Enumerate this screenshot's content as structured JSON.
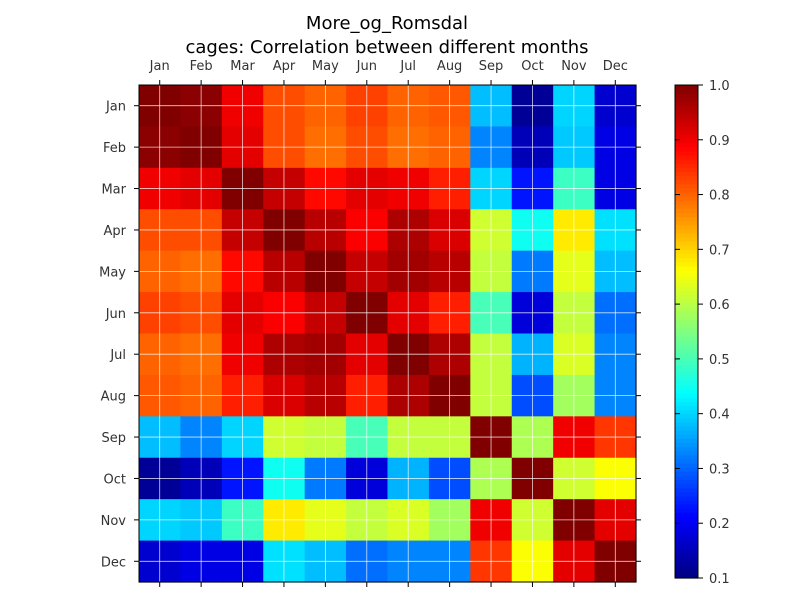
{
  "chart_data": {
    "type": "heatmap",
    "title": "More_og_Romsdal",
    "subtitle": "cages: Correlation between different months",
    "x_categories": [
      "Jan",
      "Feb",
      "Mar",
      "Apr",
      "May",
      "Jun",
      "Jul",
      "Aug",
      "Sep",
      "Oct",
      "Nov",
      "Dec"
    ],
    "y_categories": [
      "Jan",
      "Feb",
      "Mar",
      "Apr",
      "May",
      "Jun",
      "Jul",
      "Aug",
      "Sep",
      "Oct",
      "Nov",
      "Dec"
    ],
    "values": [
      [
        1.0,
        0.99,
        0.9,
        0.82,
        0.8,
        0.83,
        0.8,
        0.81,
        0.38,
        0.12,
        0.4,
        0.17
      ],
      [
        0.99,
        1.0,
        0.91,
        0.82,
        0.79,
        0.82,
        0.79,
        0.8,
        0.33,
        0.15,
        0.39,
        0.19
      ],
      [
        0.9,
        0.91,
        1.0,
        0.94,
        0.88,
        0.91,
        0.9,
        0.86,
        0.4,
        0.23,
        0.49,
        0.19
      ],
      [
        0.82,
        0.82,
        0.94,
        1.0,
        0.95,
        0.89,
        0.96,
        0.92,
        0.62,
        0.45,
        0.68,
        0.41
      ],
      [
        0.8,
        0.79,
        0.88,
        0.95,
        1.0,
        0.94,
        0.97,
        0.95,
        0.61,
        0.32,
        0.64,
        0.38
      ],
      [
        0.83,
        0.82,
        0.91,
        0.89,
        0.94,
        1.0,
        0.91,
        0.86,
        0.5,
        0.18,
        0.61,
        0.31
      ],
      [
        0.8,
        0.79,
        0.9,
        0.96,
        0.97,
        0.91,
        1.0,
        0.96,
        0.61,
        0.37,
        0.63,
        0.33
      ],
      [
        0.81,
        0.8,
        0.86,
        0.92,
        0.95,
        0.86,
        0.96,
        1.0,
        0.61,
        0.28,
        0.58,
        0.33
      ],
      [
        0.38,
        0.33,
        0.4,
        0.62,
        0.61,
        0.5,
        0.61,
        0.61,
        1.0,
        0.59,
        0.9,
        0.84
      ],
      [
        0.12,
        0.15,
        0.23,
        0.45,
        0.32,
        0.18,
        0.37,
        0.28,
        0.59,
        1.0,
        0.62,
        0.66
      ],
      [
        0.4,
        0.39,
        0.49,
        0.68,
        0.64,
        0.61,
        0.63,
        0.58,
        0.9,
        0.62,
        1.0,
        0.91
      ],
      [
        0.17,
        0.19,
        0.19,
        0.41,
        0.38,
        0.31,
        0.33,
        0.33,
        0.84,
        0.66,
        0.91,
        1.0
      ]
    ],
    "colorbar": {
      "min": 0.1,
      "max": 1.0,
      "ticks": [
        0.1,
        0.2,
        0.3,
        0.4,
        0.5,
        0.6,
        0.7,
        0.8,
        0.9,
        1.0
      ],
      "colormap": "jet"
    },
    "grid": true
  }
}
